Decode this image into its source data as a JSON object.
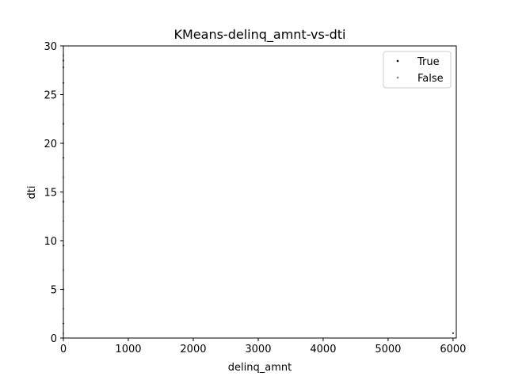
{
  "chart_data": {
    "type": "scatter",
    "title": "KMeans-delinq_amnt-vs-dti",
    "xlabel": "delinq_amnt",
    "ylabel": "dti",
    "xlim": [
      0,
      6050
    ],
    "ylim": [
      0,
      30
    ],
    "xticks": [
      0,
      1000,
      2000,
      3000,
      4000,
      5000,
      6000
    ],
    "yticks": [
      0,
      5,
      10,
      15,
      20,
      25,
      30
    ],
    "grid": false,
    "legend_position": "top-right",
    "series": [
      {
        "name": "True",
        "color": "#000000",
        "points": [
          [
            0,
            28.5
          ],
          [
            0,
            27.8
          ],
          [
            0,
            26.2
          ],
          [
            0,
            22.0
          ],
          [
            0,
            18.5
          ],
          [
            0,
            14.0
          ],
          [
            0,
            9.5
          ],
          [
            0,
            5.0
          ],
          [
            0,
            1.5
          ],
          [
            6000,
            0.5
          ]
        ]
      },
      {
        "name": "False",
        "color": "#808080",
        "points": [
          [
            0,
            29.0
          ],
          [
            0,
            24.0
          ],
          [
            0,
            20.0
          ],
          [
            0,
            16.5
          ],
          [
            0,
            12.0
          ],
          [
            0,
            7.0
          ],
          [
            0,
            3.0
          ],
          [
            0,
            0.5
          ]
        ]
      }
    ]
  }
}
